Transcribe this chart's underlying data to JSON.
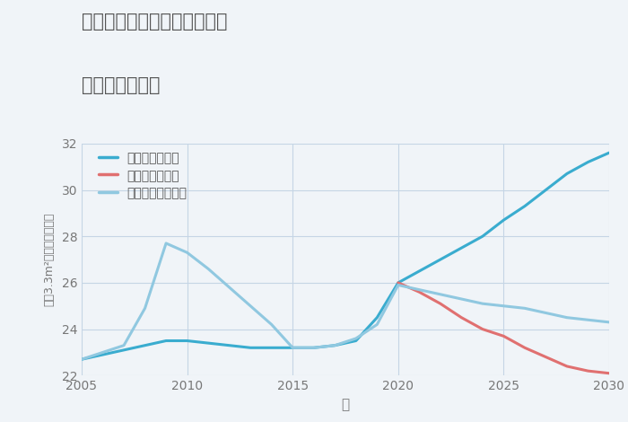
{
  "title_line1": "三重県四日市市阿倉川新町の",
  "title_line2": "土地の価格推移",
  "xlabel": "年",
  "ylabel": "坪（3.3m²）単価（万円）",
  "background_color": "#f0f4f8",
  "grid_color": "#c5d5e5",
  "xlim": [
    2005,
    2030
  ],
  "ylim": [
    22,
    32
  ],
  "yticks": [
    22,
    24,
    26,
    28,
    30,
    32
  ],
  "xticks": [
    2005,
    2010,
    2015,
    2020,
    2025,
    2030
  ],
  "legend_labels": [
    "グッドシナリオ",
    "バッドシナリオ",
    "ノーマルシナリオ"
  ],
  "good_color": "#3aaccf",
  "bad_color": "#e07070",
  "normal_color": "#90c8e0",
  "good_x": [
    2005,
    2006,
    2007,
    2008,
    2009,
    2010,
    2011,
    2012,
    2013,
    2014,
    2015,
    2016,
    2017,
    2018,
    2019,
    2020,
    2021,
    2022,
    2023,
    2024,
    2025,
    2026,
    2027,
    2028,
    2029,
    2030
  ],
  "good_y": [
    22.7,
    22.9,
    23.1,
    23.3,
    23.5,
    23.5,
    23.4,
    23.3,
    23.2,
    23.2,
    23.2,
    23.2,
    23.3,
    23.5,
    24.5,
    26.0,
    26.5,
    27.0,
    27.5,
    28.0,
    28.7,
    29.3,
    30.0,
    30.7,
    31.2,
    31.6
  ],
  "bad_x": [
    2020,
    2021,
    2022,
    2023,
    2024,
    2025,
    2026,
    2027,
    2028,
    2029,
    2030
  ],
  "bad_y": [
    26.0,
    25.6,
    25.1,
    24.5,
    24.0,
    23.7,
    23.2,
    22.8,
    22.4,
    22.2,
    22.1
  ],
  "normal_x": [
    2005,
    2006,
    2007,
    2008,
    2009,
    2010,
    2011,
    2012,
    2013,
    2014,
    2015,
    2016,
    2017,
    2018,
    2019,
    2020,
    2021,
    2022,
    2023,
    2024,
    2025,
    2026,
    2027,
    2028,
    2029,
    2030
  ],
  "normal_y": [
    22.7,
    23.0,
    23.3,
    24.9,
    27.7,
    27.3,
    26.6,
    25.8,
    25.0,
    24.2,
    23.2,
    23.2,
    23.3,
    23.6,
    24.2,
    25.9,
    25.7,
    25.5,
    25.3,
    25.1,
    25.0,
    24.9,
    24.7,
    24.5,
    24.4,
    24.3
  ],
  "line_width": 2.2
}
